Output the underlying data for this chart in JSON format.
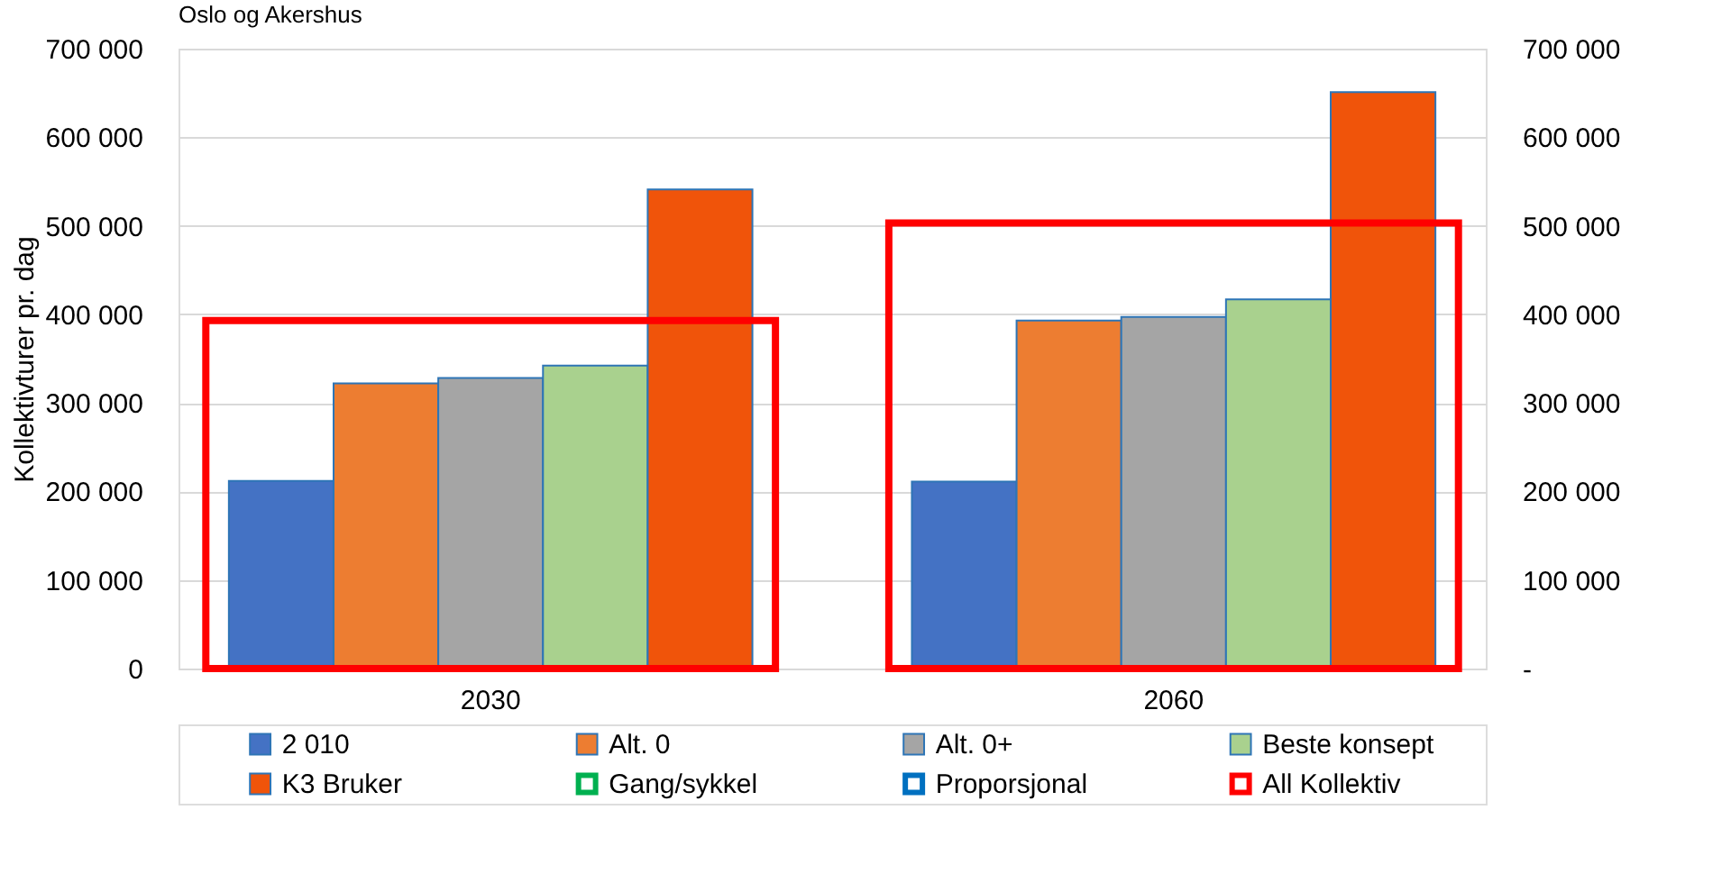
{
  "chart_data": {
    "type": "bar",
    "title": "Oslo og Akershus",
    "ylabel": "Kollektivturer pr. dag",
    "categories": [
      "2030",
      "2060"
    ],
    "series": [
      {
        "name": "2 010",
        "color": "#4472c4",
        "values": [
          212000,
          211000
        ]
      },
      {
        "name": "Alt. 0",
        "color": "#ed7d31",
        "values": [
          322000,
          393000
        ]
      },
      {
        "name": "Alt. 0+",
        "color": "#a5a5a5",
        "values": [
          328000,
          397000
        ]
      },
      {
        "name": "Beste konsept",
        "color": "#a9d18e",
        "values": [
          342000,
          417000
        ]
      },
      {
        "name": "K3 Bruker",
        "color": "#f0540a",
        "values": [
          541000,
          651000
        ]
      },
      {
        "name": "Gang/sykkel",
        "color": "#00b050",
        "axis": "y2",
        "values": [
          null,
          null
        ]
      },
      {
        "name": "Proporsjonal",
        "color": "#0070c0",
        "axis": "y2",
        "values": [
          null,
          null
        ]
      },
      {
        "name": "All Kollektiv",
        "color": "#ff0000",
        "axis": "y2",
        "values": [
          393000,
          503000
        ]
      }
    ],
    "ylim": [
      0,
      700000
    ],
    "yticks": [
      {
        "value": 0,
        "label": "0"
      },
      {
        "value": 100000,
        "label": "100 000"
      },
      {
        "value": 200000,
        "label": "200 000"
      },
      {
        "value": 300000,
        "label": "300 000"
      },
      {
        "value": 400000,
        "label": "400 000"
      },
      {
        "value": 500000,
        "label": "500 000"
      },
      {
        "value": 600000,
        "label": "600 000"
      },
      {
        "value": 700000,
        "label": "700 000"
      }
    ],
    "y2lim": [
      0,
      700000
    ],
    "y2ticks": [
      {
        "value": 0,
        "label": "-"
      },
      {
        "value": 100000,
        "label": "100 000"
      },
      {
        "value": 200000,
        "label": "200 000"
      },
      {
        "value": 300000,
        "label": "300 000"
      },
      {
        "value": 400000,
        "label": "400 000"
      },
      {
        "value": 500000,
        "label": "500 000"
      },
      {
        "value": 600000,
        "label": "600 000"
      },
      {
        "value": 700000,
        "label": "700 000"
      }
    ],
    "grid": "y",
    "legend": "bottom"
  }
}
